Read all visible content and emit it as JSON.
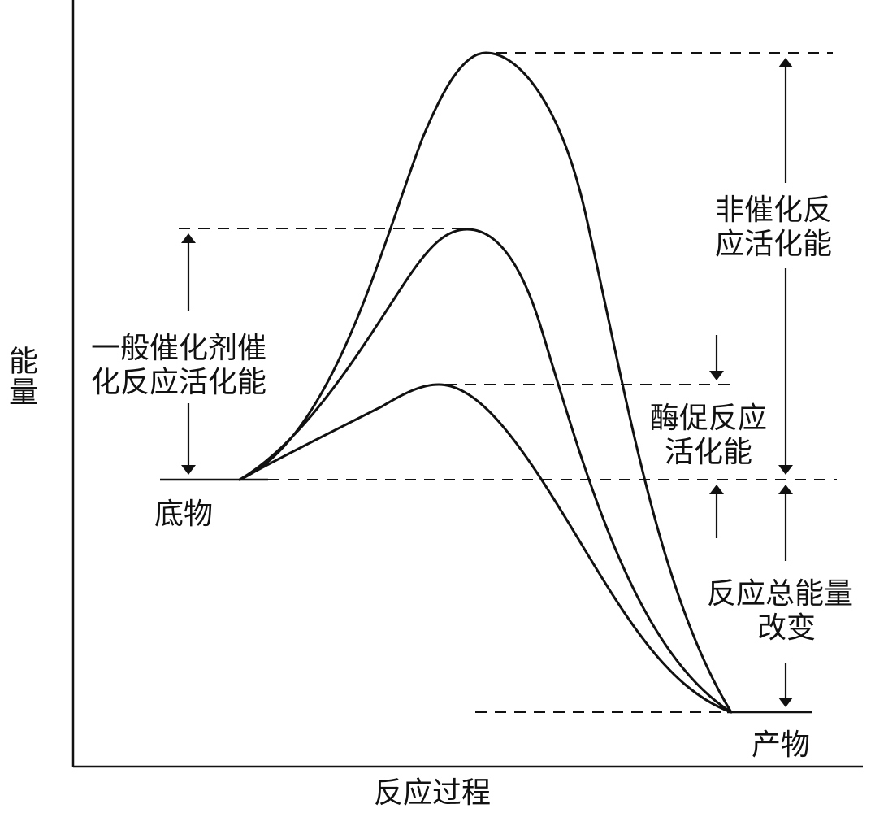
{
  "labels": {
    "y_axis": "能量",
    "x_axis": "反应过程",
    "substrate": "底物",
    "product": "产物",
    "general_catalyst": [
      "一般催化剂催",
      "化反应活化能"
    ],
    "uncatalyzed": [
      "非催化反",
      "应活化能"
    ],
    "enzyme": [
      "酶促反应",
      "活化能"
    ],
    "total_energy": [
      "反应总能量",
      "改变"
    ]
  },
  "colors": {
    "line": "#111111",
    "background": "#ffffff"
  }
}
